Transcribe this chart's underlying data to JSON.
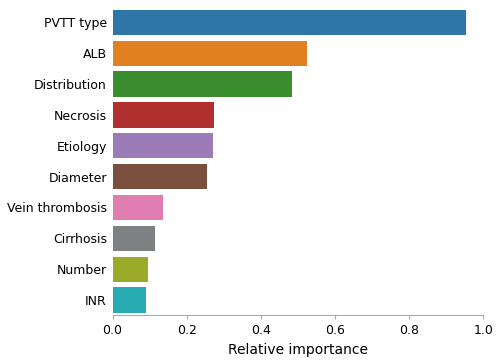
{
  "categories": [
    "INR",
    "Number",
    "Cirrhosis",
    "Vein thrombosis",
    "Diameter",
    "Etiology",
    "Necrosis",
    "Distribution",
    "ALB",
    "PVTT type"
  ],
  "values": [
    0.09,
    0.095,
    0.115,
    0.135,
    0.255,
    0.27,
    0.275,
    0.485,
    0.525,
    0.955
  ],
  "colors": [
    "#29abb4",
    "#9aaa28",
    "#7f8083",
    "#e07db0",
    "#7b4f3e",
    "#9b7bb8",
    "#b03030",
    "#3a8e2d",
    "#e08020",
    "#2e76a8"
  ],
  "xlabel": "Relative importance",
  "xlim": [
    0,
    1.0
  ],
  "xticks": [
    0.0,
    0.2,
    0.4,
    0.6,
    0.8,
    1.0
  ],
  "xtick_labels": [
    "0.0",
    "0.2",
    "0.4",
    "0.6",
    "0.8",
    "1.0"
  ],
  "background_color": "#ffffff",
  "bar_height": 0.82
}
